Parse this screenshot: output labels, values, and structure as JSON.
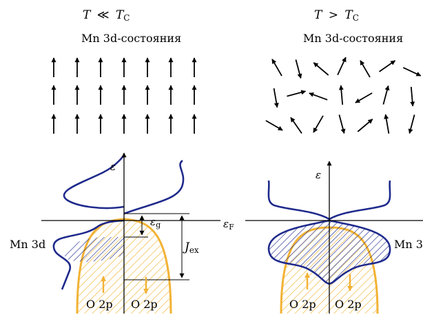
{
  "left_panel": {
    "title_var": "T",
    "title_rel": "≪",
    "title_sym": "T",
    "title_sub": "C",
    "states_label": "Mn 3d-состояния",
    "energy_axis": "ε",
    "fermi_label": "ε",
    "fermi_sub": "F",
    "gap_label": "ε",
    "gap_sub": "g",
    "exchange_label": "J",
    "exchange_sub": "ex",
    "mn_band_label": "Mn 3d",
    "o_left_label": "O 2p",
    "o_right_label": "O 2p"
  },
  "right_panel": {
    "title_var": "T",
    "title_rel": ">",
    "title_sym": "T",
    "title_sub": "C",
    "states_label": "Mn 3d-состояния",
    "energy_axis": "ε",
    "mn_band_label": "Mn 3",
    "o_left_label": "O 2p",
    "o_right_label": "O 2p"
  },
  "colors": {
    "mn_band": "#1f2a8c",
    "o_band": "#f2b233",
    "spin": "#000000",
    "axis": "#000000"
  },
  "icons": {
    "spin_arrow": "arrow-icon"
  }
}
